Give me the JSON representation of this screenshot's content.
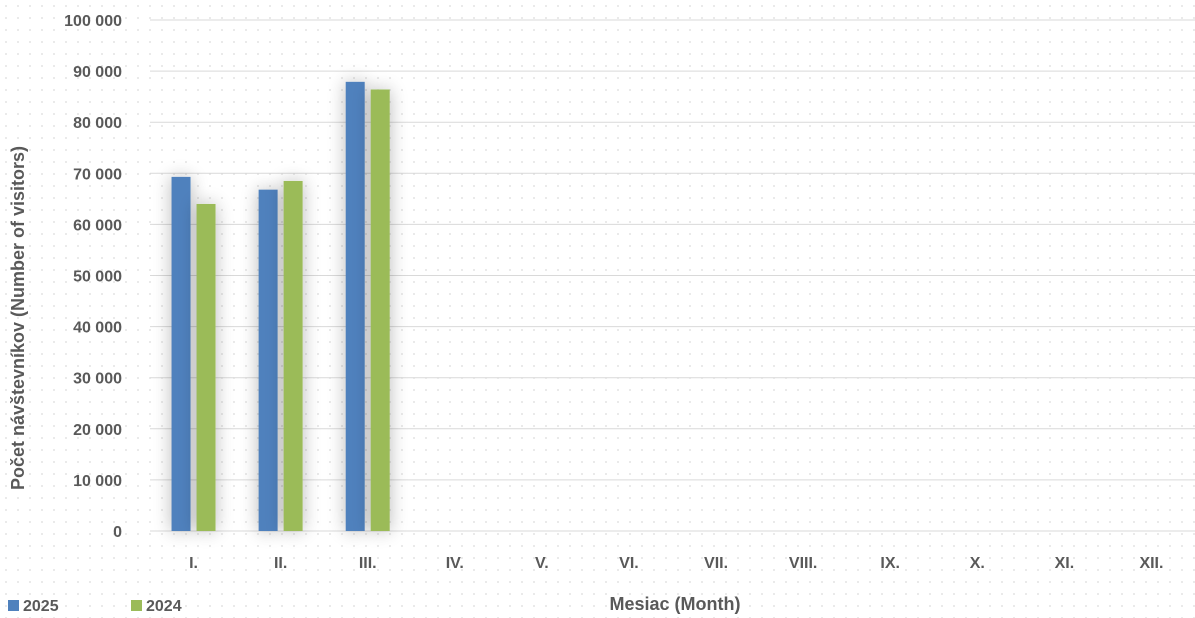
{
  "chart_data": {
    "type": "bar",
    "xlabel": "Mesiac (Month)",
    "ylabel": "Počet návštevníkov (Number of visitors)",
    "categories": [
      "I.",
      "II.",
      "III.",
      "IV.",
      "V.",
      "VI.",
      "VII.",
      "VIII.",
      "IX.",
      "X.",
      "XI.",
      "XII."
    ],
    "ylim": [
      0,
      100000
    ],
    "yticks": [
      0,
      10000,
      20000,
      30000,
      40000,
      50000,
      60000,
      70000,
      80000,
      90000,
      100000
    ],
    "ytick_labels": [
      "0",
      "10 000",
      "20 000",
      "30 000",
      "40 000",
      "50 000",
      "60 000",
      "70 000",
      "80 000",
      "90 000",
      "100 000"
    ],
    "grid": true,
    "legend_position": "bottom-left",
    "series": [
      {
        "name": "2025",
        "color": "#4f81bd",
        "values": [
          69300,
          66800,
          87900,
          null,
          null,
          null,
          null,
          null,
          null,
          null,
          null,
          null
        ]
      },
      {
        "name": "2024",
        "color": "#9bbb59",
        "values": [
          64000,
          68500,
          86400,
          null,
          null,
          null,
          null,
          null,
          null,
          null,
          null,
          null
        ]
      }
    ]
  }
}
